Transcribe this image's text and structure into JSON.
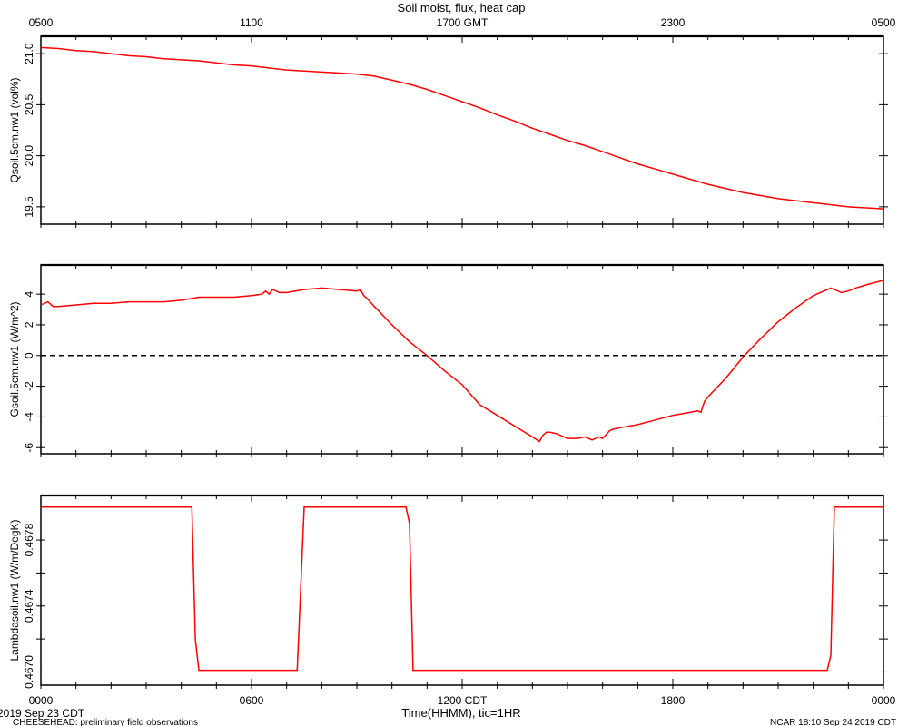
{
  "title": "Soil moist, flux, heat cap",
  "top_axis": {
    "ticks": [
      "0500",
      "1100",
      "1700 GMT",
      "2300",
      "0500"
    ]
  },
  "bottom_axis": {
    "ticks": [
      "0000",
      "0600",
      "1200 CDT",
      "1800",
      "0000"
    ],
    "label": "Time(HHMM), tic=1HR"
  },
  "footer": {
    "date_left": "2019 Sep 23 CDT",
    "project": "CHEESEHEAD: preliminary field observations",
    "stamp": "NCAR 18:10 Sep 24 2019 CDT"
  },
  "colors": {
    "series": "#ff0000",
    "zero_line": "#000000",
    "axes": "#000000"
  },
  "chart_data": [
    {
      "type": "line",
      "ylabel": "Qsoil.5cm.nw1 (vol%)",
      "ylim": [
        19.33,
        21.17
      ],
      "yticks": [
        19.5,
        20.0,
        20.5,
        21.0
      ],
      "ytick_labels": [
        "19.5",
        "20.0",
        "20.5",
        "21.0"
      ],
      "xlim": [
        0,
        24
      ],
      "series": [
        {
          "x": [
            0,
            0.5,
            1,
            1.5,
            2,
            2.5,
            3,
            3.5,
            4,
            4.5,
            5,
            5.5,
            6,
            6.5,
            7,
            7.5,
            8,
            8.5,
            9,
            9.5,
            10,
            10.5,
            11,
            11.5,
            12,
            12.5,
            13,
            13.5,
            14,
            14.5,
            15,
            15.5,
            16,
            16.5,
            17,
            17.5,
            18,
            18.5,
            19,
            19.5,
            20,
            20.5,
            21,
            21.5,
            22,
            22.5,
            23,
            23.5,
            24
          ],
          "values": [
            21.06,
            21.05,
            21.03,
            21.02,
            21.0,
            20.98,
            20.97,
            20.95,
            20.94,
            20.93,
            20.91,
            20.89,
            20.88,
            20.86,
            20.84,
            20.83,
            20.82,
            20.81,
            20.8,
            20.78,
            20.74,
            20.7,
            20.65,
            20.59,
            20.53,
            20.47,
            20.4,
            20.34,
            20.27,
            20.21,
            20.15,
            20.1,
            20.04,
            19.98,
            19.92,
            19.87,
            19.82,
            19.77,
            19.72,
            19.68,
            19.64,
            19.61,
            19.58,
            19.56,
            19.54,
            19.52,
            19.5,
            19.49,
            19.48
          ]
        }
      ]
    },
    {
      "type": "line",
      "ylabel": "Gsoil.5cm.nw1 (W/m^2)",
      "ylim": [
        -6.4,
        5.9
      ],
      "yticks": [
        -6,
        -4,
        -2,
        0,
        2,
        4
      ],
      "ytick_labels": [
        "-6",
        "-4",
        "-2",
        "0",
        "2",
        "4"
      ],
      "xlim": [
        0,
        24
      ],
      "zero_line": true,
      "series": [
        {
          "x": [
            0,
            0.2,
            0.35,
            0.5,
            1,
            1.5,
            2,
            2.5,
            3,
            3.5,
            4,
            4.5,
            5,
            5.5,
            6,
            6.3,
            6.4,
            6.5,
            6.6,
            6.8,
            7,
            7.5,
            8,
            8.5,
            9,
            9.1,
            9.2,
            9.3,
            9.5,
            10,
            10.5,
            11,
            11.5,
            12,
            12.5,
            13,
            13.5,
            14,
            14.2,
            14.3,
            14.4,
            14.5,
            14.7,
            15,
            15.3,
            15.5,
            15.7,
            15.9,
            16,
            16.2,
            16.3,
            16.5,
            17,
            17.5,
            18,
            18.5,
            18.7,
            18.8,
            18.9,
            19,
            19.5,
            20,
            20.5,
            21,
            21.5,
            22,
            22.5,
            22.8,
            23.0,
            23.2,
            23.5,
            24
          ],
          "values": [
            3.3,
            3.5,
            3.2,
            3.2,
            3.3,
            3.4,
            3.4,
            3.5,
            3.5,
            3.5,
            3.6,
            3.8,
            3.8,
            3.8,
            3.9,
            4.0,
            4.2,
            4.0,
            4.3,
            4.1,
            4.1,
            4.3,
            4.4,
            4.3,
            4.2,
            4.3,
            3.9,
            3.7,
            3.2,
            2.0,
            0.9,
            0.0,
            -1.0,
            -1.9,
            -3.2,
            -3.9,
            -4.6,
            -5.3,
            -5.6,
            -5.2,
            -5.0,
            -5.0,
            -5.1,
            -5.4,
            -5.4,
            -5.3,
            -5.5,
            -5.3,
            -5.4,
            -4.9,
            -4.8,
            -4.7,
            -4.5,
            -4.2,
            -3.9,
            -3.7,
            -3.6,
            -3.7,
            -3.0,
            -2.7,
            -1.5,
            -0.1,
            1.1,
            2.2,
            3.1,
            3.9,
            4.4,
            4.1,
            4.2,
            4.4,
            4.6,
            4.9
          ]
        }
      ]
    },
    {
      "type": "line",
      "ylabel": "Lambdasoil.nw1 (W/m/DegK)",
      "ylim": [
        0.46692,
        0.46807
      ],
      "yticks": [
        0.467,
        0.4672,
        0.4674,
        0.4676,
        0.4678
      ],
      "ytick_labels": [
        "0.4670",
        "",
        "0.4674",
        "",
        "0.4678"
      ],
      "xlim": [
        0,
        24
      ],
      "series": [
        {
          "x": [
            0,
            4.3,
            4.4,
            4.5,
            7.3,
            7.4,
            7.5,
            10.4,
            10.5,
            10.6,
            22.4,
            22.5,
            22.6,
            24
          ],
          "values": [
            0.468,
            0.468,
            0.4672,
            0.46701,
            0.46701,
            0.4675,
            0.468,
            0.468,
            0.4679,
            0.46701,
            0.46701,
            0.4671,
            0.468,
            0.468
          ]
        }
      ]
    }
  ]
}
